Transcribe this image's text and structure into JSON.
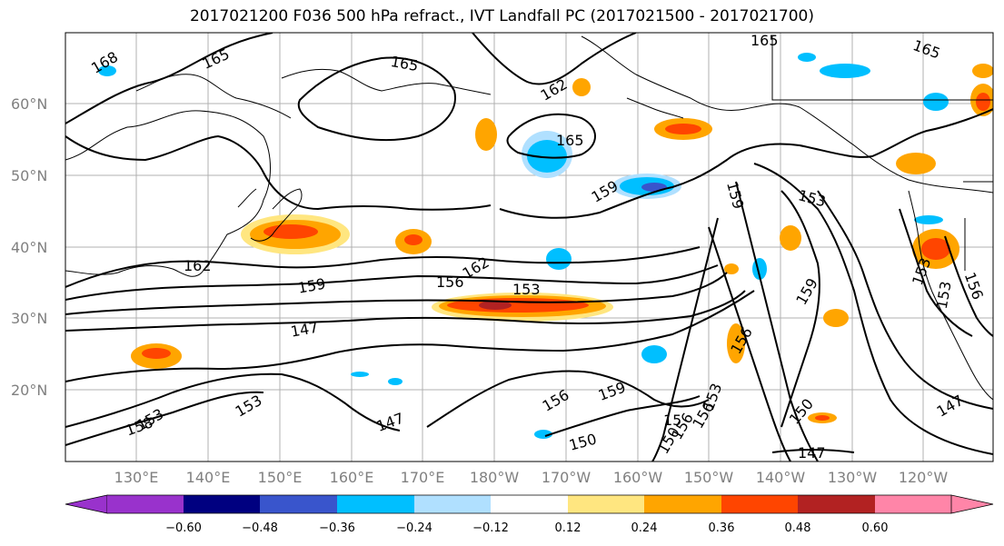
{
  "title": "2017021200 F036 500 hPa refract., IVT Landfall PC (2017021500 - 2017021700)",
  "map": {
    "lat_labels": [
      "60°N",
      "50°N",
      "40°N",
      "30°N",
      "20°N"
    ],
    "lon_labels": [
      "130°E",
      "140°E",
      "150°E",
      "160°E",
      "170°E",
      "180°W",
      "170°W",
      "160°W",
      "150°W",
      "140°W",
      "130°W",
      "120°W"
    ],
    "contour_labels": [
      "168",
      "165",
      "165",
      "165",
      "165",
      "162",
      "165",
      "159",
      "159",
      "153",
      "162",
      "159",
      "156",
      "162",
      "153",
      "147",
      "159",
      "153",
      "156",
      "159",
      "156",
      "153",
      "158",
      "153",
      "147",
      "150",
      "156",
      "150",
      "150",
      "147",
      "147",
      "153",
      "156",
      "153",
      "156",
      "15"
    ],
    "grid": true,
    "colors": {
      "positive": [
        "#ffe680",
        "#ffa500",
        "#ff4500",
        "#b22222",
        "#ff85a8"
      ],
      "negative": [
        "#b0e0ff",
        "#00bfff",
        "#3955cc",
        "#000080",
        "#9932cc"
      ]
    }
  },
  "colorbar": {
    "ticks": [
      "−0.60",
      "−0.48",
      "−0.36",
      "−0.24",
      "−0.12",
      "0.12",
      "0.24",
      "0.36",
      "0.48",
      "0.60"
    ],
    "colors": [
      "#9932cc",
      "#000080",
      "#3955cc",
      "#00bfff",
      "#b0e0ff",
      "#ffffff",
      "#ffe680",
      "#ffa500",
      "#ff4500",
      "#b22222",
      "#ff85a8"
    ]
  }
}
